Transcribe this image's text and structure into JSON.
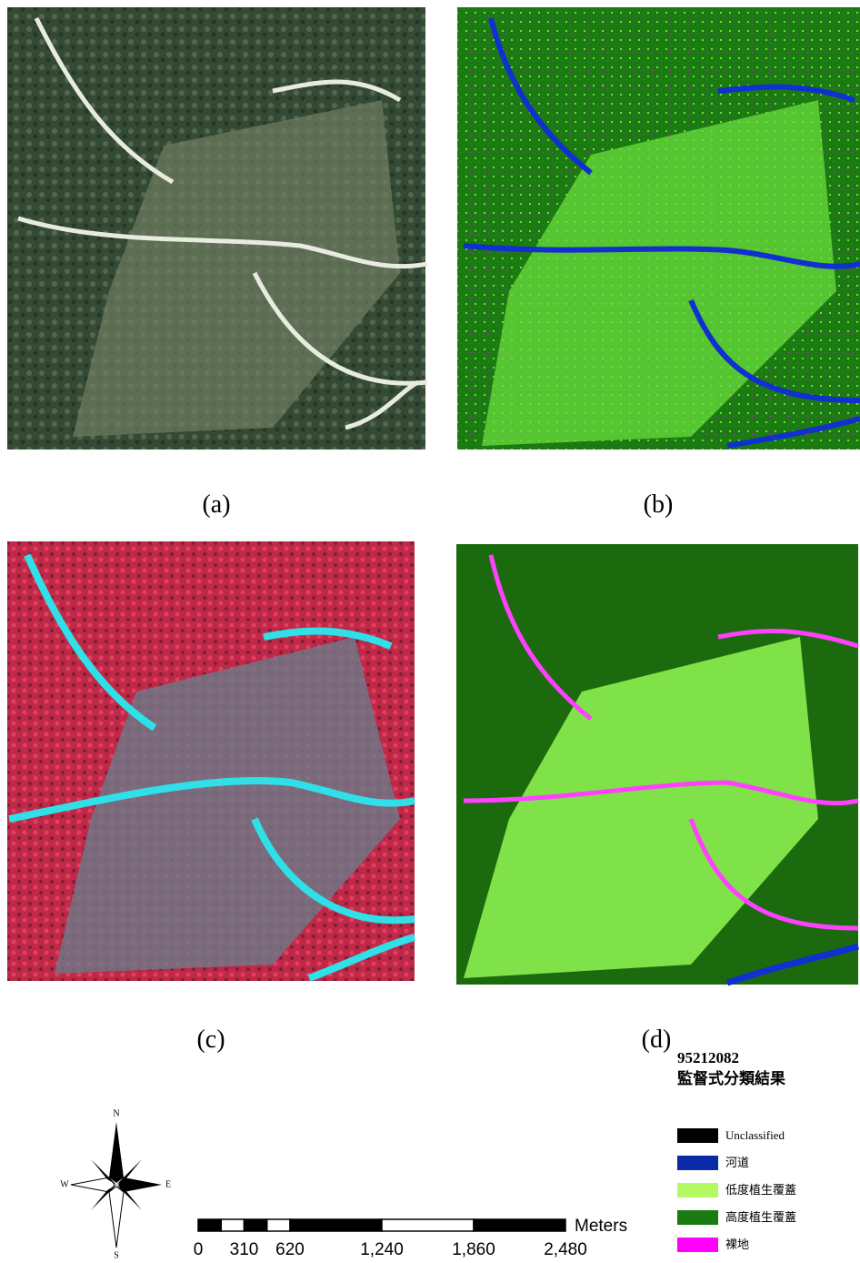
{
  "panels": [
    {
      "caption": "(a)"
    },
    {
      "caption": "(b)"
    },
    {
      "caption": "(c)"
    },
    {
      "caption": "(d)"
    }
  ],
  "compass": {
    "north": "N",
    "south": "S",
    "east": "E",
    "west": "W"
  },
  "scale_bar": {
    "unit": "Meters",
    "ticks": [
      0,
      310,
      620,
      {
        "value": 1240,
        "label": "1,240"
      },
      {
        "value": 1860,
        "label": "1,860"
      },
      {
        "value": 2480,
        "label": "2,480"
      }
    ]
  },
  "legend": {
    "title": "95212082",
    "subtitle": "監督式分類結果",
    "items": [
      {
        "label": "Unclassified",
        "color": "#000000"
      },
      {
        "label": "河道",
        "color": "#0a2aa8"
      },
      {
        "label": "低度植生覆蓋",
        "color": "#b4f864"
      },
      {
        "label": "高度植生覆蓋",
        "color": "#1b7a12"
      },
      {
        "label": "裸地",
        "color": "#ff00ff"
      }
    ]
  }
}
